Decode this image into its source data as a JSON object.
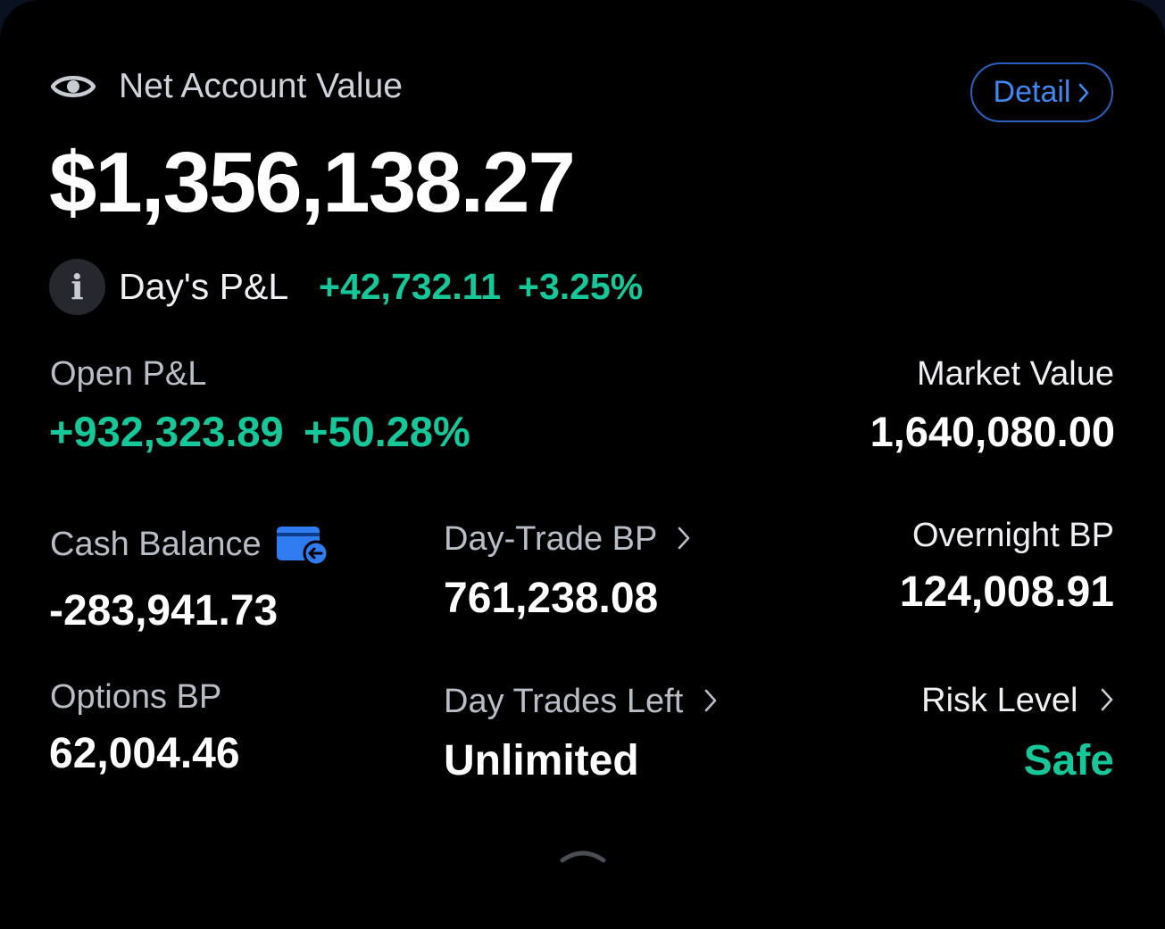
{
  "header": {
    "label": "Net Account Value",
    "detail_label": "Detail",
    "value": "$1,356,138.27"
  },
  "day_pnl": {
    "label": "Day's P&L",
    "amount": "+42,732.11",
    "percent": "+3.25%"
  },
  "open_pnl": {
    "label": "Open P&L",
    "amount": "+932,323.89",
    "percent": "+50.28%"
  },
  "market_value": {
    "label": "Market Value",
    "value": "1,640,080.00"
  },
  "cash_balance": {
    "label": "Cash Balance",
    "value": "-283,941.73"
  },
  "day_trade_bp": {
    "label": "Day-Trade BP",
    "value": "761,238.08"
  },
  "overnight_bp": {
    "label": "Overnight BP",
    "value": "124,008.91"
  },
  "options_bp": {
    "label": "Options BP",
    "value": "62,004.46"
  },
  "day_trades_left": {
    "label": "Day Trades Left",
    "value": "Unlimited"
  },
  "risk_level": {
    "label": "Risk Level",
    "value": "Safe"
  },
  "colors": {
    "positive": "#16c79a",
    "accent": "#3f87f2",
    "background": "#000000"
  },
  "icons": [
    "eye-icon",
    "info-icon",
    "wallet-icon",
    "chevron-right-icon",
    "collapse-handle-icon"
  ]
}
